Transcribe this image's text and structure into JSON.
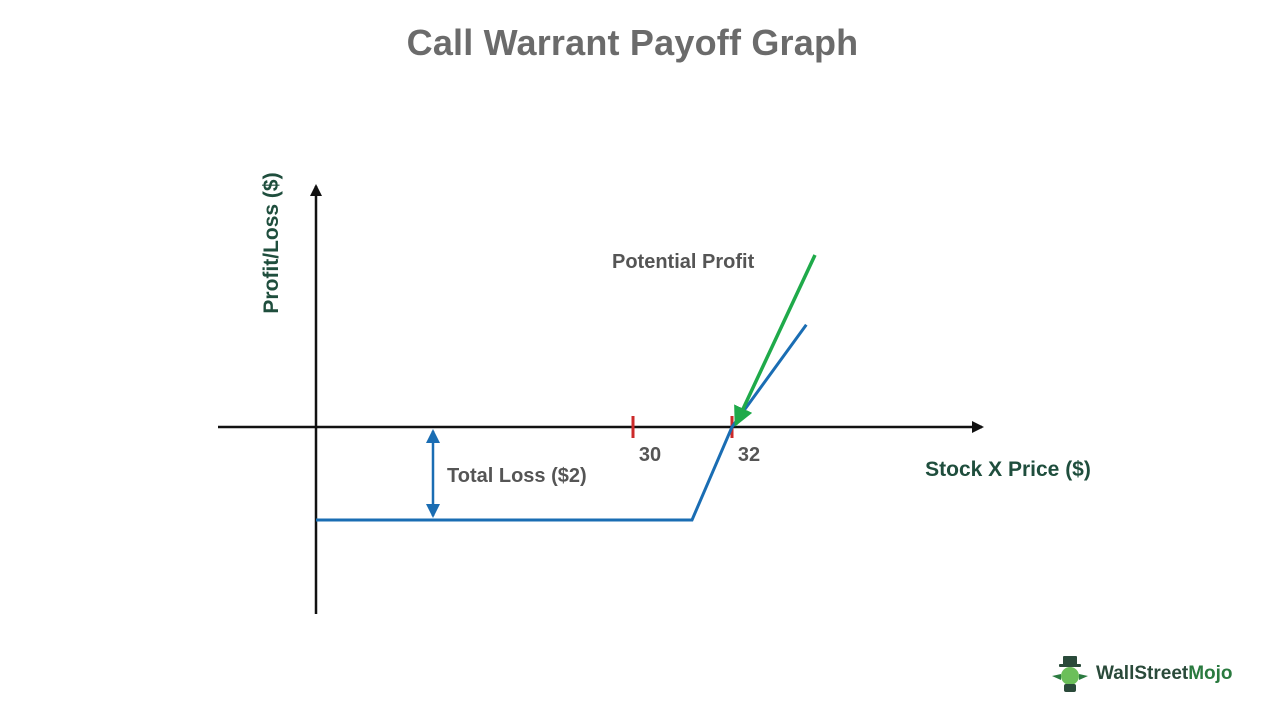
{
  "title": "Call Warrant Payoff Graph",
  "chart_data": {
    "type": "line",
    "title": "Call Warrant Payoff Graph",
    "xlabel": "Stock X Price ($)",
    "ylabel": "Profit/Loss ($)",
    "tick_labels": [
      "30",
      "32"
    ],
    "series": [
      {
        "x": [
          0,
          31,
          32,
          33.5
        ],
        "y": [
          -2,
          -2,
          0,
          2.2
        ]
      }
    ],
    "annotations": [
      {
        "text": "Total Loss ($2)",
        "arrow": "double",
        "from_y": -2,
        "to_y": 0,
        "at_x": 5
      },
      {
        "text": "Potential Profit",
        "arrow": "pointing to breakeven",
        "at_x": 32,
        "at_y": 0
      }
    ],
    "colors": {
      "payoff_line": "#1a6db3",
      "loss_arrow": "#1a6db3",
      "profit_arrow": "#1faa4a",
      "tick_marks": "#cc2a2a",
      "axes": "#111111"
    },
    "grid": false,
    "legend": "none"
  },
  "brand": {
    "name_part1": "WallStreet",
    "name_part2": "Mojo"
  }
}
